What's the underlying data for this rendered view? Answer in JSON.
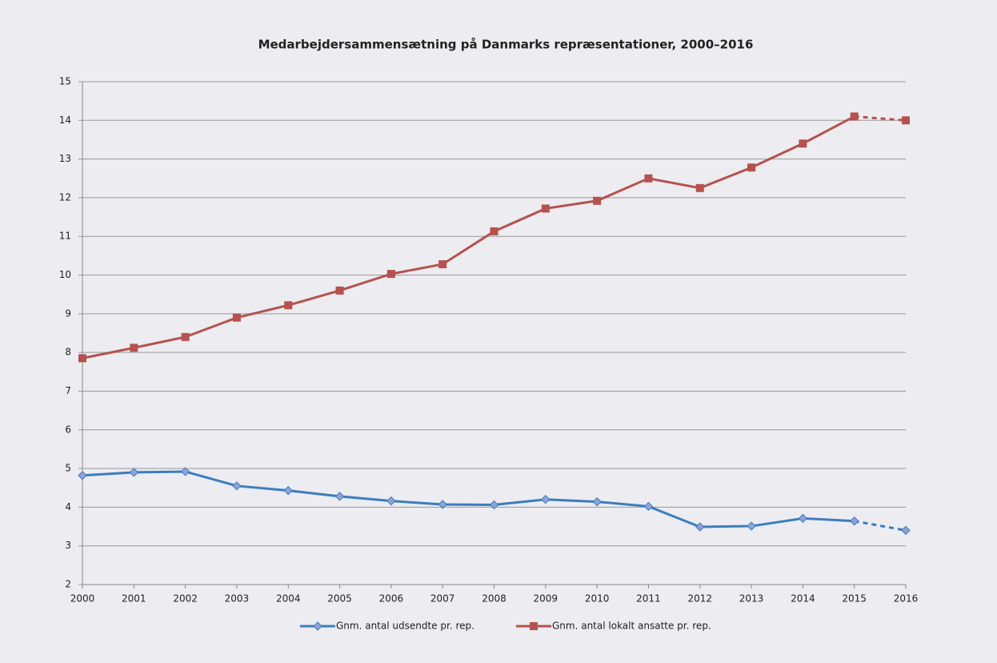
{
  "chart_data": {
    "type": "line",
    "title": "Medarbejdersammensætning på Danmarks repræsentationer, 2000–2016",
    "categories": [
      "2000",
      "2001",
      "2002",
      "2003",
      "2004",
      "2005",
      "2006",
      "2007",
      "2008",
      "2009",
      "2010",
      "2011",
      "2012",
      "2013",
      "2014",
      "2015",
      "2016"
    ],
    "series": [
      {
        "name": "Gnm. antal udsendte pr. rep.",
        "color": "#3b7dbf",
        "marker": "diamond",
        "values": [
          4.82,
          4.9,
          4.92,
          4.55,
          4.43,
          4.28,
          4.16,
          4.07,
          4.06,
          4.2,
          4.14,
          4.02,
          3.49,
          3.51,
          3.71,
          3.64,
          3.4
        ]
      },
      {
        "name": "Gnm. antal lokalt ansatte pr. rep.",
        "color": "#b5524e",
        "marker": "square",
        "values": [
          7.85,
          8.12,
          8.4,
          8.9,
          9.22,
          9.6,
          10.03,
          10.28,
          11.13,
          11.72,
          11.92,
          12.5,
          12.25,
          12.78,
          13.4,
          14.1,
          14.0
        ]
      }
    ],
    "ylim": [
      2,
      15
    ],
    "yticks": [
      2,
      3,
      4,
      5,
      6,
      7,
      8,
      9,
      10,
      11,
      12,
      13,
      14,
      15
    ],
    "grid": true,
    "dashed_last_segment": true,
    "legend": "bottom"
  }
}
